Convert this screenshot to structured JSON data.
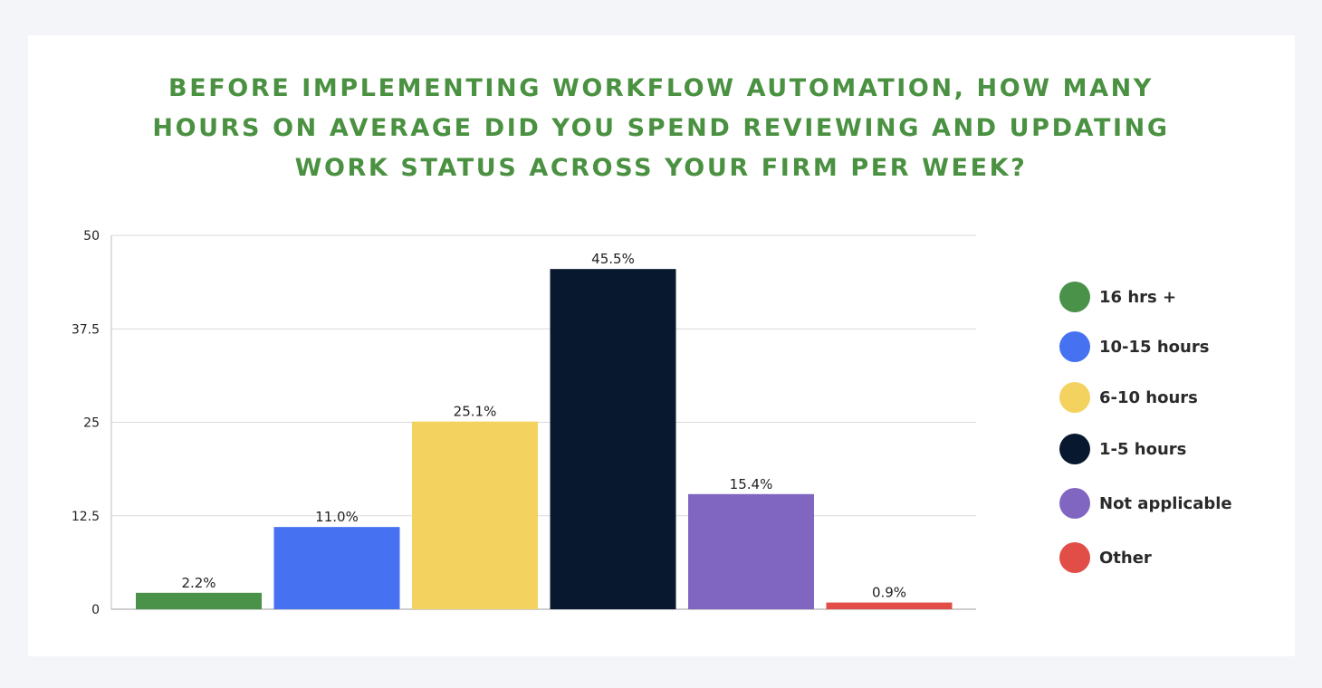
{
  "chart_data": {
    "type": "bar",
    "title_lines": [
      "BEFORE IMPLEMENTING WORKFLOW AUTOMATION, HOW MANY",
      "HOURS ON AVERAGE DID YOU SPEND REVIEWING AND UPDATING",
      "WORK STATUS ACROSS YOUR FIRM PER WEEK?"
    ],
    "categories": [
      "16 hrs +",
      "10-15 hours",
      "6-10 hours",
      "1-5 hours",
      "Not applicable",
      "Other"
    ],
    "values": [
      2.2,
      11.0,
      25.1,
      45.5,
      15.4,
      0.9
    ],
    "value_labels": [
      "2.2%",
      "11.0%",
      "25.1%",
      "45.5%",
      "15.4%",
      "0.9%"
    ],
    "colors": [
      "#4a9149",
      "#4672f2",
      "#f4d25f",
      "#08182f",
      "#8066c1",
      "#e04e47"
    ],
    "ylim": [
      0,
      50
    ],
    "yticks": [
      0,
      12.5,
      25,
      37.5,
      50
    ],
    "ytick_labels": [
      "0",
      "12.5",
      "25",
      "37.5",
      "50"
    ],
    "grid": true,
    "legend_position": "right"
  }
}
